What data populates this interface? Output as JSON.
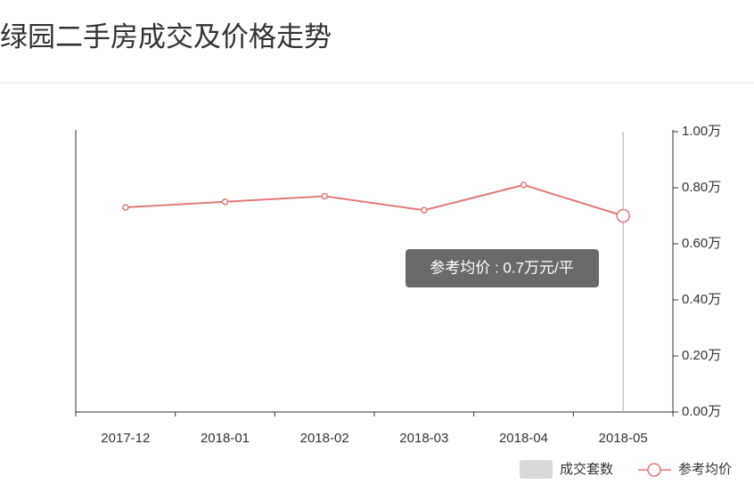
{
  "chart_data": {
    "type": "line",
    "title": "绿园二手房成交及价格走势",
    "categories": [
      "2017-12",
      "2018-01",
      "2018-02",
      "2018-03",
      "2018-04",
      "2018-05"
    ],
    "series": [
      {
        "name": "成交套数",
        "type": "bar",
        "color": "#d9d9d9",
        "values": [
          null,
          null,
          null,
          null,
          null,
          null
        ]
      },
      {
        "name": "参考均价",
        "type": "line",
        "axis": "y2",
        "color": "#e07b78",
        "values": [
          0.73,
          0.75,
          0.77,
          0.72,
          0.81,
          0.7
        ]
      }
    ],
    "y2lim": [
      0,
      1
    ],
    "y2ticks": [
      {
        "value": 0,
        "label": "0.00万"
      },
      {
        "value": 0.2,
        "label": "0.20万"
      },
      {
        "value": 0.4,
        "label": "0.40万"
      },
      {
        "value": 0.6,
        "label": "0.60万"
      },
      {
        "value": 0.8,
        "label": "0.80万"
      },
      {
        "value": 1,
        "label": "1.00万"
      }
    ],
    "tooltip": "参考均价 : 0.7万元/平"
  }
}
